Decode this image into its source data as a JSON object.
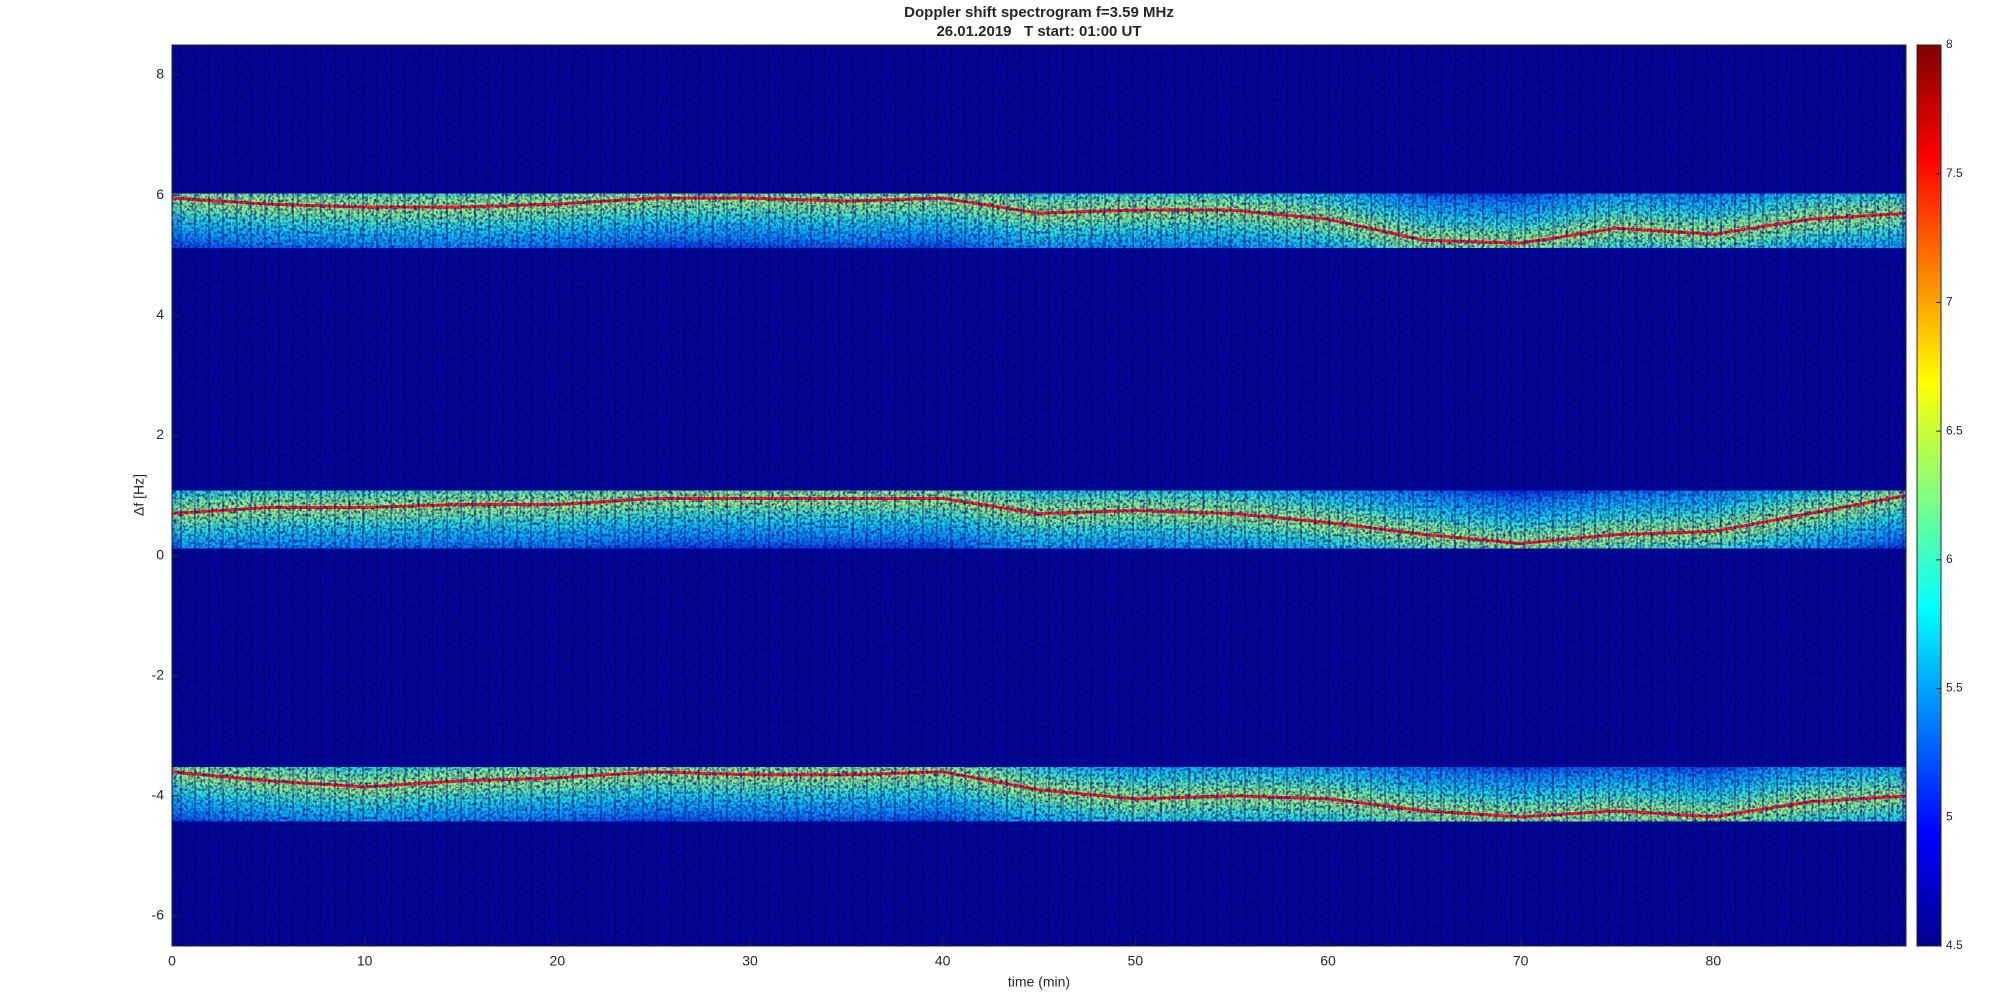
{
  "chart_data": {
    "type": "spectrogram",
    "title": "Doppler shift spectrogram f=3.59 MHz",
    "subtitle": "26.01.2019   T start: 01:00 UT",
    "xlabel": "time (min)",
    "ylabel": "Δf [Hz]",
    "xlim": [
      0,
      90
    ],
    "ylim": [
      -6.5,
      8.5
    ],
    "xticks": [
      0,
      10,
      20,
      30,
      40,
      50,
      60,
      70,
      80
    ],
    "yticks": [
      -6,
      -4,
      -2,
      0,
      2,
      4,
      6,
      8
    ],
    "clim": [
      4.5,
      8
    ],
    "cticks": [
      4.5,
      5,
      5.5,
      6,
      6.5,
      7,
      7.5,
      8
    ],
    "colormap": "jet",
    "color": "#ff2020",
    "x": [
      0,
      5,
      10,
      15,
      20,
      25,
      30,
      35,
      40,
      45,
      50,
      55,
      60,
      65,
      70,
      75,
      80,
      85,
      90
    ],
    "series": [
      {
        "values": [
          5.95,
          5.85,
          5.8,
          5.8,
          5.85,
          5.95,
          5.95,
          5.9,
          5.95,
          5.7,
          5.75,
          5.75,
          5.6,
          5.25,
          5.2,
          5.45,
          5.35,
          5.6,
          5.7
        ]
      },
      {
        "values": [
          0.7,
          0.8,
          0.8,
          0.85,
          0.85,
          0.95,
          0.95,
          0.95,
          0.95,
          0.7,
          0.75,
          0.7,
          0.55,
          0.35,
          0.2,
          0.35,
          0.4,
          0.7,
          1.0
        ]
      },
      {
        "values": [
          -3.6,
          -3.75,
          -3.85,
          -3.75,
          -3.7,
          -3.6,
          -3.65,
          -3.65,
          -3.6,
          -3.9,
          -4.05,
          -4.0,
          -4.05,
          -4.25,
          -4.35,
          -4.25,
          -4.35,
          -4.1,
          -4.0
        ]
      }
    ]
  }
}
